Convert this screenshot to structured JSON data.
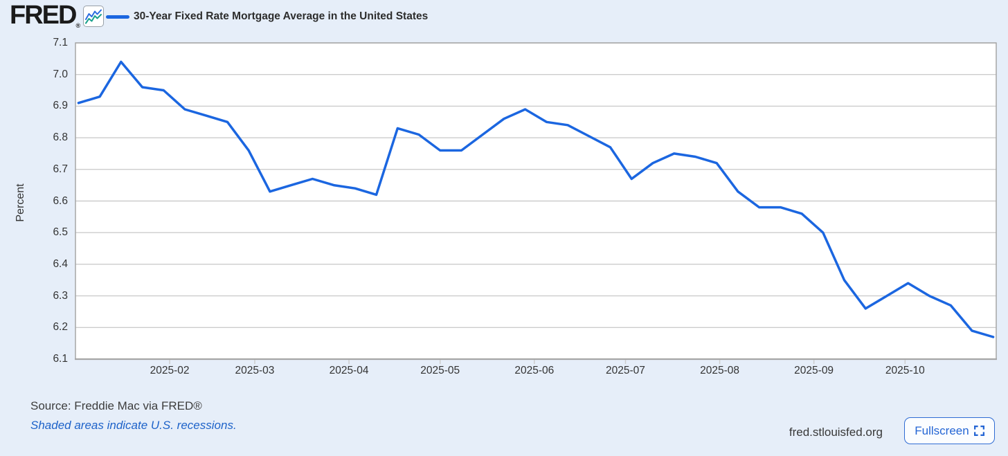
{
  "header": {
    "logo_text": "FRED",
    "logo_registered": "®",
    "logo_chart_icon": "line-chart-icon",
    "title": "30-Year Fixed Rate Mortgage Average in the United States"
  },
  "chart_data": {
    "type": "line",
    "title": "30-Year Fixed Rate Mortgage Average in the United States",
    "xlabel": "",
    "ylabel": "Percent",
    "ylim": [
      6.1,
      7.1
    ],
    "ytick_labels": [
      "7.1",
      "7.0",
      "6.9",
      "6.8",
      "6.7",
      "6.6",
      "6.5",
      "6.4",
      "6.3",
      "6.2",
      "6.1"
    ],
    "xlim": [
      "2025-01-01",
      "2025-10-31"
    ],
    "xticks": [
      {
        "date": "2025-02-01",
        "label": "2025-02"
      },
      {
        "date": "2025-03-01",
        "label": "2025-03"
      },
      {
        "date": "2025-04-01",
        "label": "2025-04"
      },
      {
        "date": "2025-05-01",
        "label": "2025-05"
      },
      {
        "date": "2025-06-01",
        "label": "2025-06"
      },
      {
        "date": "2025-07-01",
        "label": "2025-07"
      },
      {
        "date": "2025-08-01",
        "label": "2025-08"
      },
      {
        "date": "2025-09-01",
        "label": "2025-09"
      },
      {
        "date": "2025-10-01",
        "label": "2025-10"
      }
    ],
    "grid": true,
    "legend_position": "top-left",
    "series": [
      {
        "name": "30-Year Fixed Rate Mortgage Average in the United States",
        "color": "#1b66e0",
        "frequency": "weekly",
        "units": "Percent",
        "points": [
          {
            "date": "2025-01-02",
            "value": 6.91
          },
          {
            "date": "2025-01-09",
            "value": 6.93
          },
          {
            "date": "2025-01-16",
            "value": 7.04
          },
          {
            "date": "2025-01-23",
            "value": 6.96
          },
          {
            "date": "2025-01-30",
            "value": 6.95
          },
          {
            "date": "2025-02-06",
            "value": 6.89
          },
          {
            "date": "2025-02-13",
            "value": 6.87
          },
          {
            "date": "2025-02-20",
            "value": 6.85
          },
          {
            "date": "2025-02-27",
            "value": 6.76
          },
          {
            "date": "2025-03-06",
            "value": 6.63
          },
          {
            "date": "2025-03-13",
            "value": 6.65
          },
          {
            "date": "2025-03-20",
            "value": 6.67
          },
          {
            "date": "2025-03-27",
            "value": 6.65
          },
          {
            "date": "2025-04-03",
            "value": 6.64
          },
          {
            "date": "2025-04-10",
            "value": 6.62
          },
          {
            "date": "2025-04-17",
            "value": 6.83
          },
          {
            "date": "2025-04-24",
            "value": 6.81
          },
          {
            "date": "2025-05-01",
            "value": 6.76
          },
          {
            "date": "2025-05-08",
            "value": 6.76
          },
          {
            "date": "2025-05-15",
            "value": 6.81
          },
          {
            "date": "2025-05-22",
            "value": 6.86
          },
          {
            "date": "2025-05-29",
            "value": 6.89
          },
          {
            "date": "2025-06-05",
            "value": 6.85
          },
          {
            "date": "2025-06-12",
            "value": 6.84
          },
          {
            "date": "2025-06-18",
            "value": 6.81
          },
          {
            "date": "2025-06-26",
            "value": 6.77
          },
          {
            "date": "2025-07-03",
            "value": 6.67
          },
          {
            "date": "2025-07-10",
            "value": 6.72
          },
          {
            "date": "2025-07-17",
            "value": 6.75
          },
          {
            "date": "2025-07-24",
            "value": 6.74
          },
          {
            "date": "2025-07-31",
            "value": 6.72
          },
          {
            "date": "2025-08-07",
            "value": 6.63
          },
          {
            "date": "2025-08-14",
            "value": 6.58
          },
          {
            "date": "2025-08-21",
            "value": 6.58
          },
          {
            "date": "2025-08-28",
            "value": 6.56
          },
          {
            "date": "2025-09-04",
            "value": 6.5
          },
          {
            "date": "2025-09-11",
            "value": 6.35
          },
          {
            "date": "2025-09-18",
            "value": 6.26
          },
          {
            "date": "2025-09-25",
            "value": 6.3
          },
          {
            "date": "2025-10-02",
            "value": 6.34
          },
          {
            "date": "2025-10-09",
            "value": 6.3
          },
          {
            "date": "2025-10-16",
            "value": 6.27
          },
          {
            "date": "2025-10-23",
            "value": 6.19
          },
          {
            "date": "2025-10-30",
            "value": 6.17
          }
        ]
      }
    ]
  },
  "footer": {
    "source": "Source: Freddie Mac via FRED®",
    "recession_note": "Shaded areas indicate U.S. recessions.",
    "site": "fred.stlouisfed.org",
    "fullscreen_label": "Fullscreen",
    "fullscreen_icon": "fullscreen-corners-icon"
  },
  "colors": {
    "background": "#e6eef9",
    "plot_background": "#ffffff",
    "gridline": "#cccccc",
    "plot_border": "#a6a6a6",
    "series_line": "#1b66e0",
    "logo_icon_blue": "#2b6de0",
    "logo_icon_teal": "#18a08c",
    "link_blue": "#1d62c9",
    "button_blue": "#2365d4",
    "text_dark": "#2d2d2d"
  }
}
